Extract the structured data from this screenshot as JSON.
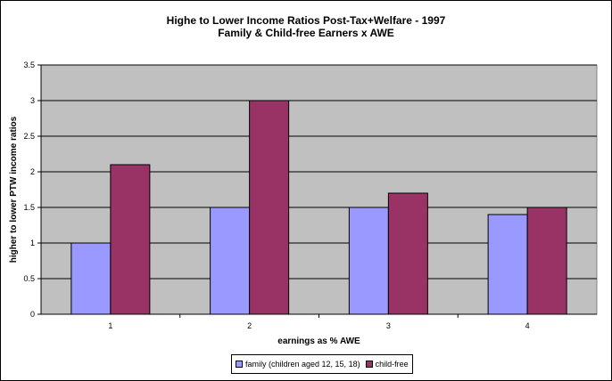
{
  "chart_data": {
    "type": "bar",
    "title": "Highe to Lower Income Ratios Post-Tax+Welfare - 1997",
    "subtitle": "Family & Child-free Earners x AWE",
    "xlabel": "earnings as % AWE",
    "ylabel": "higher to lower PTW income ratios",
    "categories": [
      "1",
      "2",
      "3",
      "4"
    ],
    "series": [
      {
        "name": "family (children aged 12, 15, 18)",
        "values": [
          1.0,
          1.5,
          1.5,
          1.4
        ],
        "color": "#9999ff"
      },
      {
        "name": "child-free",
        "values": [
          2.1,
          3.0,
          1.7,
          1.5
        ],
        "color": "#993366"
      }
    ],
    "ylim": [
      0,
      3.5
    ],
    "yticks": [
      "0",
      "0.5",
      "1",
      "1.5",
      "2",
      "2.5",
      "3",
      "3.5"
    ],
    "grid": true,
    "legend_position": "bottom",
    "plot_background": "#c0c0c0"
  }
}
